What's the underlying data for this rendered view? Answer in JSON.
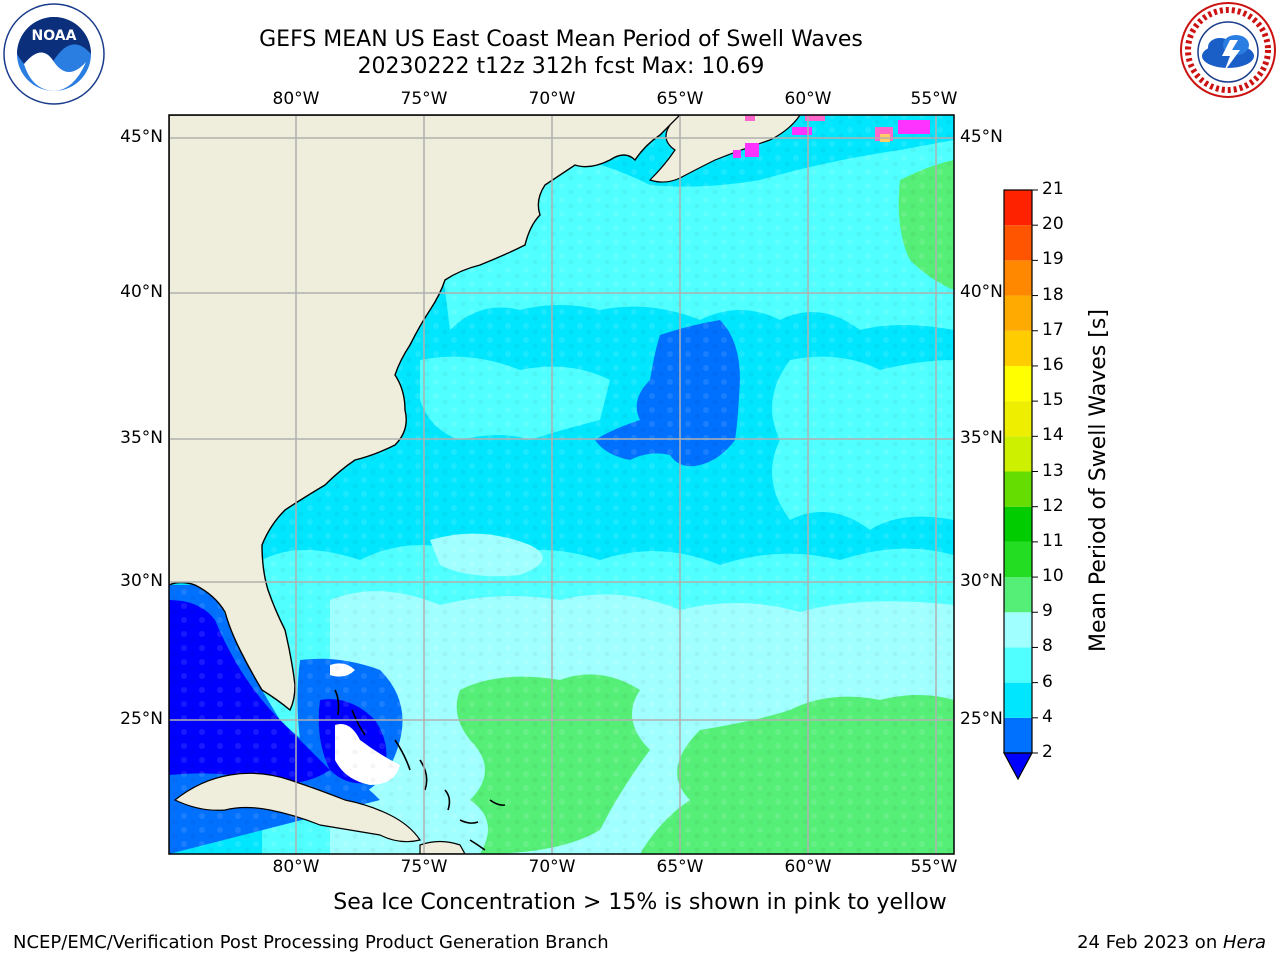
{
  "title_line1": "GEFS MEAN US East Coast Mean Period of Swell Waves",
  "title_line2": "20230222 t12z 312h fcst   Max: 10.69",
  "logos": {
    "left": "noaa-logo",
    "right": "nws-logo"
  },
  "map": {
    "lon_ticks": [
      "80°W",
      "75°W",
      "70°W",
      "65°W",
      "60°W",
      "55°W"
    ],
    "lat_ticks": [
      "45°N",
      "40°N",
      "35°N",
      "30°N",
      "25°N"
    ],
    "extent": {
      "lon_min": -85,
      "lon_max": -54.2,
      "lat_min": 20.5,
      "lat_max": 45.8
    },
    "colors": {
      "land": "#efeedd",
      "grid": "#b0b0b0",
      "coast": "#000000"
    }
  },
  "colorbar": {
    "label": "Mean Period of Swell Waves [s]",
    "levels": [
      "2",
      "4",
      "6",
      "8",
      "9",
      "10",
      "11",
      "12",
      "13",
      "14",
      "15",
      "16",
      "17",
      "18",
      "19",
      "20",
      "21"
    ],
    "colors": [
      "#0070ff",
      "#00e6ff",
      "#50ffff",
      "#a0ffff",
      "#55ee77",
      "#22dd22",
      "#00cc00",
      "#66dd00",
      "#ccf000",
      "#eeee00",
      "#ffff00",
      "#ffcc00",
      "#ffaa00",
      "#ff8800",
      "#ff5500",
      "#ff2200",
      "#ff0000"
    ],
    "under_color": "#0000ff"
  },
  "note": "Sea Ice Concentration > 15% is shown in pink to yellow",
  "footer_left": "NCEP/EMC/Verification Post Processing Product Generation Branch",
  "footer_right_date": "24 Feb 2023 on ",
  "footer_right_machine": "Hera"
}
